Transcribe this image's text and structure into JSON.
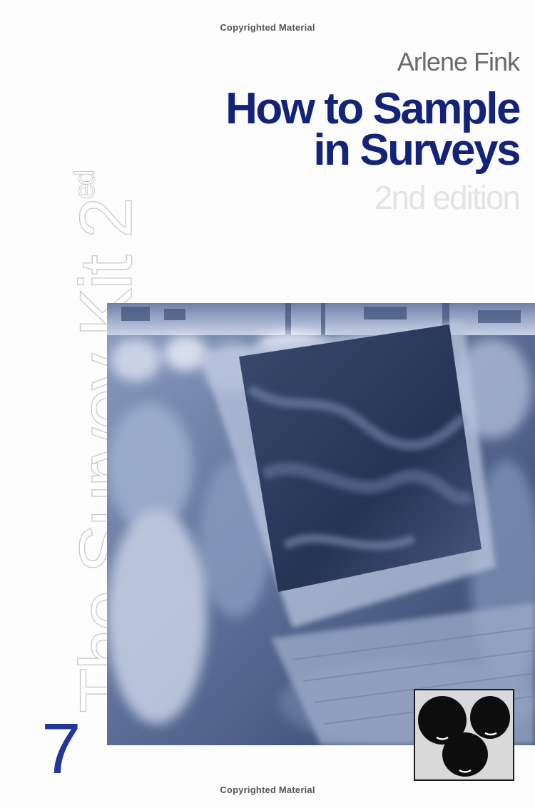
{
  "watermark": {
    "top": "Copyrighted Material",
    "bottom": "Copyrighted Material"
  },
  "cover": {
    "author": "Arlene Fink",
    "title_line1": "How to Sample",
    "title_line2": "in Surveys",
    "edition": "2nd edition",
    "series_name": "The Survey Kit 2",
    "series_edition_sup": "ed",
    "volume_number": "7"
  },
  "colors": {
    "title": "#13237a",
    "volume": "#23379a",
    "photo_tint": "#4e5f85"
  },
  "images": {
    "cover_photo": "crowd-and-computer-monitor-photo",
    "publisher_logo": "three-heads-logo"
  }
}
